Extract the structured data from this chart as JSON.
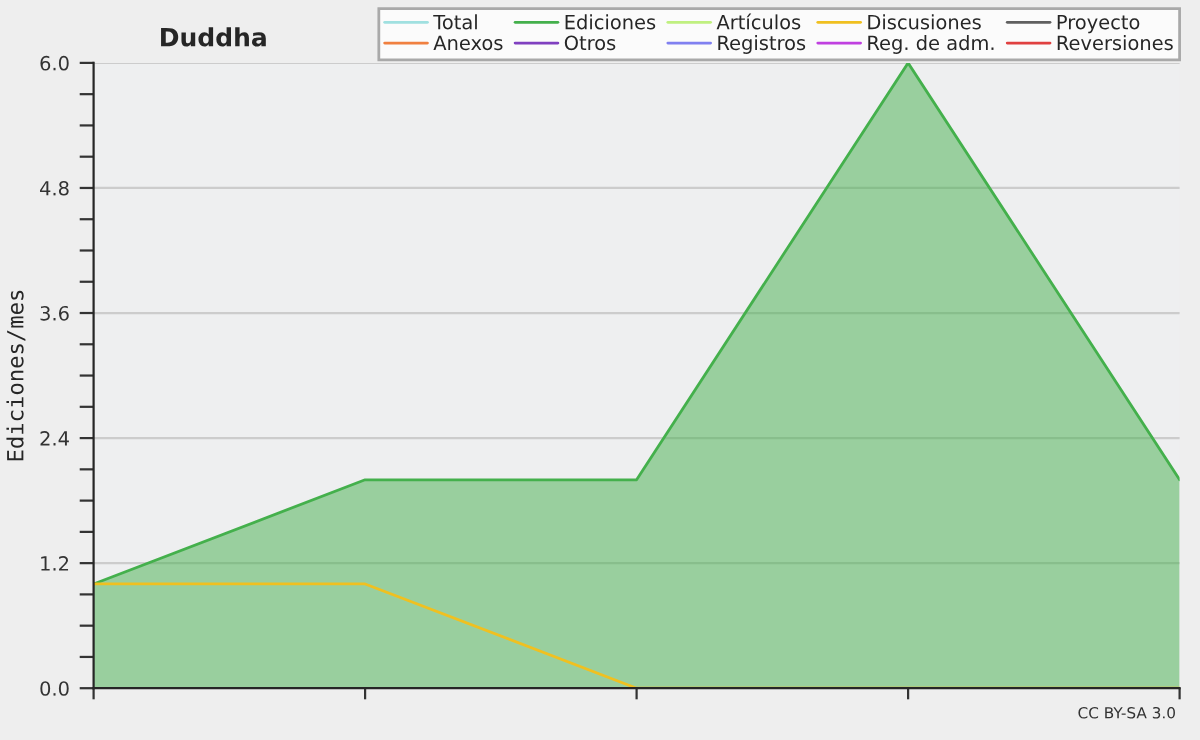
{
  "chart_data": {
    "type": "area",
    "title": "Duddha",
    "ylabel": "Ediciones/mes",
    "categories": [
      null,
      null,
      null,
      null,
      null
    ],
    "series": [
      {
        "name": "Total",
        "type": "line",
        "color": "#a0e0e0",
        "values": [
          null,
          null,
          null,
          null,
          null
        ]
      },
      {
        "name": "Ediciones",
        "color": "#44b04c",
        "values": [
          1,
          2,
          2,
          6,
          2
        ]
      },
      {
        "name": "Artículos",
        "type": "line",
        "color": "#c0f080",
        "values": [
          null,
          null,
          null,
          null,
          null
        ]
      },
      {
        "name": "Discusiones",
        "type": "line",
        "color": "#f0c020",
        "values": [
          1,
          1,
          0,
          0,
          0
        ]
      },
      {
        "name": "Proyecto",
        "type": "line",
        "color": "#606060",
        "values": [
          null,
          null,
          null,
          null,
          null
        ]
      },
      {
        "name": "Anexos",
        "type": "line",
        "color": "#f08040",
        "values": [
          null,
          null,
          null,
          null,
          null
        ]
      },
      {
        "name": "Otros",
        "type": "line",
        "color": "#8040c0",
        "values": [
          null,
          null,
          null,
          null,
          null
        ]
      },
      {
        "name": "Registros",
        "type": "line",
        "color": "#8080f0",
        "values": [
          null,
          null,
          null,
          null,
          null
        ]
      },
      {
        "name": "Reg. de adm.",
        "type": "line",
        "color": "#c040e0",
        "values": [
          null,
          null,
          null,
          null,
          null
        ]
      },
      {
        "name": "Reversiones",
        "type": "line",
        "color": "#e04040",
        "values": [
          null,
          null,
          null,
          null,
          null
        ]
      }
    ],
    "ylim": [
      0,
      6
    ],
    "yticks": [
      {
        "value": 0,
        "label": "0.0"
      },
      {
        "value": 0.3,
        "label": null
      },
      {
        "value": 0.6,
        "label": null
      },
      {
        "value": 0.9,
        "label": null
      },
      {
        "value": 1.2,
        "label": "1.2"
      },
      {
        "value": 1.5,
        "label": null
      },
      {
        "value": 1.8,
        "label": null
      },
      {
        "value": 2.1,
        "label": null
      },
      {
        "value": 2.4,
        "label": "2.4"
      },
      {
        "value": 2.7,
        "label": null
      },
      {
        "value": 3.0,
        "label": null
      },
      {
        "value": 3.3,
        "label": null
      },
      {
        "value": 3.6,
        "label": "3.6"
      },
      {
        "value": 3.9,
        "label": null
      },
      {
        "value": 4.2,
        "label": null
      },
      {
        "value": 4.5,
        "label": null
      },
      {
        "value": 4.8,
        "label": "4.8"
      },
      {
        "value": 5.1,
        "label": null
      },
      {
        "value": 5.4,
        "label": null
      },
      {
        "value": 5.7,
        "label": null
      },
      {
        "value": 6,
        "label": "6.0"
      }
    ],
    "grid": "y",
    "legend": "top right",
    "annotations": [
      "CC BY-SA 3.0"
    ]
  }
}
